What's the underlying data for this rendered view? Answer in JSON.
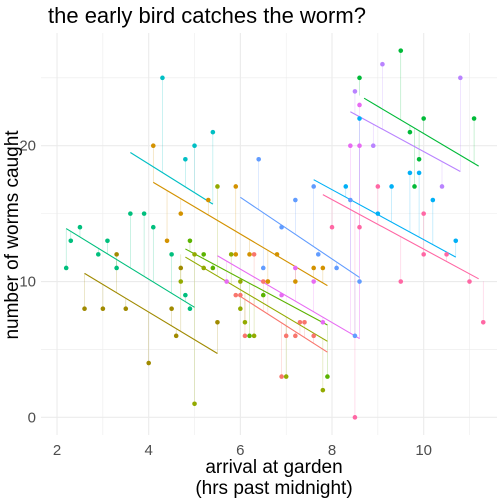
{
  "chart_data": {
    "type": "scatter",
    "title": "the early bird catches the worm?",
    "xlabel": [
      "arrival at garden",
      "(hrs past midnight)"
    ],
    "ylabel": "number of worms caught",
    "xlim": [
      1.65,
      11.6
    ],
    "ylim": [
      -1.3,
      28.3
    ],
    "x_ticks": [
      2,
      4,
      6,
      8,
      10
    ],
    "y_ticks": [
      0,
      10,
      20
    ],
    "grid": true,
    "legend": "none",
    "note": "points colored by group; thin vertical segments join each point to its group fit line",
    "groups": [
      {
        "color": "#F8766D",
        "fit": {
          "x": [
            6.0,
            7.9
          ],
          "y": [
            8.9,
            4.8
          ]
        },
        "points": [
          [
            5.9,
            9
          ],
          [
            6.0,
            9
          ],
          [
            6.1,
            6
          ],
          [
            6.3,
            12
          ],
          [
            6.5,
            10
          ],
          [
            6.6,
            10
          ],
          [
            6.9,
            3
          ],
          [
            7.0,
            6
          ],
          [
            7.2,
            6
          ],
          [
            7.3,
            7
          ],
          [
            7.4,
            7
          ],
          [
            7.6,
            6
          ]
        ]
      },
      {
        "color": "#D39200",
        "fit": {
          "x": [
            4.1,
            7.9
          ],
          "y": [
            17.3,
            9.7
          ]
        },
        "points": [
          [
            4.1,
            20
          ],
          [
            4.4,
            13
          ],
          [
            4.7,
            15
          ],
          [
            5.3,
            16
          ],
          [
            5.9,
            12
          ],
          [
            5.9,
            17
          ],
          [
            6.2,
            12
          ],
          [
            6.6,
            10
          ],
          [
            6.8,
            12
          ],
          [
            7.2,
            10
          ],
          [
            7.6,
            11
          ],
          [
            7.8,
            11
          ]
        ]
      },
      {
        "color": "#93AA00",
        "fit": {
          "x": [
            4.8,
            7.9
          ],
          "y": [
            11.8,
            5.6
          ]
        },
        "points": [
          [
            4.7,
            10
          ],
          [
            5.0,
            1
          ],
          [
            5.0,
            12
          ],
          [
            5.2,
            11
          ],
          [
            5.5,
            17
          ],
          [
            5.8,
            12
          ],
          [
            6.0,
            8
          ],
          [
            6.0,
            10
          ],
          [
            6.1,
            7
          ],
          [
            6.3,
            6
          ],
          [
            7.0,
            3
          ],
          [
            7.8,
            2
          ]
        ]
      },
      {
        "color": "#A08A00",
        "fit": {
          "x": [
            2.6,
            5.5
          ],
          "y": [
            10.6,
            4.7
          ]
        },
        "points": [
          [
            2.6,
            8
          ],
          [
            3.0,
            8
          ],
          [
            3.3,
            12
          ],
          [
            3.5,
            8
          ],
          [
            4.0,
            4
          ],
          [
            4.5,
            8
          ],
          [
            4.6,
            6
          ],
          [
            4.7,
            11
          ],
          [
            5.5,
            7
          ]
        ]
      },
      {
        "color": "#5BB300",
        "fit": {
          "x": [
            4.8,
            7.9
          ],
          "y": [
            12.4,
            6.8
          ]
        },
        "points": [
          [
            4.9,
            13
          ],
          [
            5.2,
            12
          ],
          [
            5.4,
            11
          ],
          [
            6.2,
            6
          ],
          [
            6.5,
            9
          ],
          [
            7.9,
            3
          ]
        ]
      },
      {
        "color": "#00BA38",
        "fit": {
          "x": [
            8.7,
            11.2
          ],
          "y": [
            23.5,
            18.5
          ]
        },
        "points": [
          [
            8.6,
            25
          ],
          [
            9.5,
            27
          ],
          [
            9.7,
            21
          ],
          [
            9.8,
            17
          ],
          [
            9.9,
            19
          ],
          [
            10.0,
            22
          ],
          [
            11.1,
            22
          ]
        ]
      },
      {
        "color": "#00BF7D",
        "fit": {
          "x": [
            2.2,
            5.0
          ],
          "y": [
            13.9,
            8.1
          ]
        },
        "points": [
          [
            2.2,
            11
          ],
          [
            2.3,
            13
          ],
          [
            2.5,
            14
          ],
          [
            2.9,
            12
          ],
          [
            3.1,
            13
          ],
          [
            3.3,
            11
          ],
          [
            3.6,
            15
          ],
          [
            3.9,
            15
          ],
          [
            4.1,
            14
          ],
          [
            4.5,
            12
          ],
          [
            4.8,
            9
          ],
          [
            4.9,
            8
          ]
        ]
      },
      {
        "color": "#00BFC4",
        "fit": {
          "x": [
            3.6,
            5.4
          ],
          "y": [
            19.5,
            15.7
          ]
        },
        "points": [
          [
            4.3,
            25
          ],
          [
            4.8,
            19
          ],
          [
            5.0,
            20
          ],
          [
            5.4,
            21
          ]
        ]
      },
      {
        "color": "#00B0F6",
        "fit": {
          "x": [
            7.6,
            10.7
          ],
          "y": [
            17.5,
            11.8
          ]
        },
        "points": [
          [
            8.3,
            17
          ],
          [
            8.6,
            22
          ],
          [
            9.0,
            15
          ],
          [
            9.3,
            17
          ],
          [
            9.7,
            18
          ],
          [
            9.9,
            18
          ],
          [
            10.2,
            16
          ],
          [
            10.7,
            13
          ]
        ]
      },
      {
        "color": "#619CFF",
        "fit": {
          "x": [
            6.0,
            8.6
          ],
          "y": [
            16.2,
            10.3
          ]
        },
        "points": [
          [
            6.4,
            19
          ],
          [
            6.5,
            11
          ],
          [
            6.9,
            14
          ],
          [
            7.2,
            16
          ],
          [
            7.6,
            17
          ],
          [
            7.7,
            12
          ],
          [
            8.1,
            11
          ],
          [
            8.4,
            16
          ],
          [
            8.5,
            6
          ],
          [
            8.6,
            10
          ]
        ]
      },
      {
        "color": "#B983FF",
        "fit": {
          "x": [
            8.4,
            10.8
          ],
          "y": [
            22.5,
            18.1
          ]
        },
        "points": [
          [
            8.5,
            24
          ],
          [
            8.9,
            20
          ],
          [
            9.1,
            26
          ],
          [
            10.4,
            17
          ],
          [
            10.8,
            25
          ]
        ]
      },
      {
        "color": "#E76BF3",
        "fit": {
          "x": [
            5.5,
            8.6
          ],
          "y": [
            11.9,
            5.8
          ]
        },
        "points": [
          [
            5.7,
            10
          ],
          [
            6.9,
            9
          ],
          [
            7.2,
            11
          ],
          [
            7.6,
            10
          ],
          [
            7.8,
            7
          ],
          [
            8.4,
            20
          ],
          [
            8.6,
            20
          ],
          [
            8.6,
            23
          ]
        ]
      },
      {
        "color": "#FF67A4",
        "fit": {
          "x": [
            7.8,
            11.2
          ],
          "y": [
            16.4,
            10.2
          ]
        },
        "points": [
          [
            8.0,
            14
          ],
          [
            8.5,
            0
          ],
          [
            8.6,
            14
          ],
          [
            9.0,
            17
          ],
          [
            9.5,
            10
          ],
          [
            10.0,
            12
          ],
          [
            10.0,
            15
          ],
          [
            10.5,
            12
          ],
          [
            11.0,
            10
          ],
          [
            11.3,
            7
          ]
        ]
      }
    ]
  }
}
